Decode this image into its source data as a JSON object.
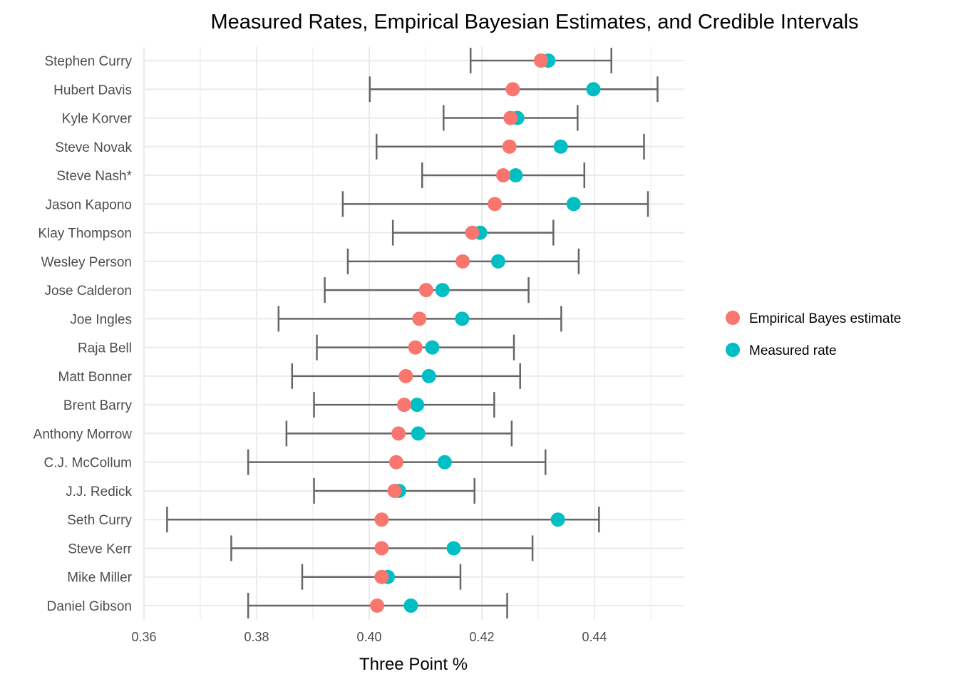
{
  "chart_data": {
    "type": "scatter",
    "title": "Measured Rates, Empirical Bayesian Estimates, and Credible Intervals",
    "xlabel": "Three Point %",
    "ylabel": "",
    "xlim": [
      0.36,
      0.456
    ],
    "x_ticks": [
      0.36,
      0.38,
      0.4,
      0.42,
      0.44
    ],
    "x_tick_labels": [
      "0.36",
      "0.38",
      "0.40",
      "0.42",
      "0.44"
    ],
    "grid": true,
    "legend_position": "right",
    "players": [
      {
        "name": "Stephen Curry",
        "eb": 0.4305,
        "measured": 0.4318,
        "low": 0.418,
        "high": 0.443
      },
      {
        "name": "Hubert Davis",
        "eb": 0.4255,
        "measured": 0.4398,
        "low": 0.4001,
        "high": 0.4512
      },
      {
        "name": "Kyle Korver",
        "eb": 0.4251,
        "measured": 0.4263,
        "low": 0.4132,
        "high": 0.437
      },
      {
        "name": "Steve Novak",
        "eb": 0.4249,
        "measured": 0.434,
        "low": 0.4013,
        "high": 0.4488
      },
      {
        "name": "Steve Nash*",
        "eb": 0.4238,
        "measured": 0.426,
        "low": 0.4094,
        "high": 0.4382
      },
      {
        "name": "Jason Kapono",
        "eb": 0.4223,
        "measured": 0.4363,
        "low": 0.3953,
        "high": 0.4495
      },
      {
        "name": "Klay Thompson",
        "eb": 0.4183,
        "measured": 0.4197,
        "low": 0.4042,
        "high": 0.4327
      },
      {
        "name": "Wesley Person",
        "eb": 0.4166,
        "measured": 0.4229,
        "low": 0.3962,
        "high": 0.4372
      },
      {
        "name": "Jose Calderon",
        "eb": 0.4101,
        "measured": 0.413,
        "low": 0.3921,
        "high": 0.4283
      },
      {
        "name": "Joe Ingles",
        "eb": 0.4089,
        "measured": 0.4165,
        "low": 0.3839,
        "high": 0.4341
      },
      {
        "name": "Raja Bell",
        "eb": 0.4082,
        "measured": 0.4112,
        "low": 0.3907,
        "high": 0.4257
      },
      {
        "name": "Matt Bonner",
        "eb": 0.4065,
        "measured": 0.4106,
        "low": 0.3863,
        "high": 0.4268
      },
      {
        "name": "Brent Barry",
        "eb": 0.4062,
        "measured": 0.4085,
        "low": 0.3902,
        "high": 0.4222
      },
      {
        "name": "Anthony Morrow",
        "eb": 0.4052,
        "measured": 0.4087,
        "low": 0.3853,
        "high": 0.4253
      },
      {
        "name": "C.J. McCollum",
        "eb": 0.4048,
        "measured": 0.4134,
        "low": 0.3785,
        "high": 0.4313
      },
      {
        "name": "J.J. Redick",
        "eb": 0.4045,
        "measured": 0.4053,
        "low": 0.3902,
        "high": 0.4187
      },
      {
        "name": "Seth Curry",
        "eb": 0.4022,
        "measured": 0.4335,
        "low": 0.3641,
        "high": 0.4408
      },
      {
        "name": "Steve Kerr",
        "eb": 0.4022,
        "measured": 0.415,
        "low": 0.3755,
        "high": 0.429
      },
      {
        "name": "Mike Miller",
        "eb": 0.4022,
        "measured": 0.4033,
        "low": 0.3881,
        "high": 0.4162
      },
      {
        "name": "Daniel Gibson",
        "eb": 0.4014,
        "measured": 0.4074,
        "low": 0.3785,
        "high": 0.4245
      }
    ],
    "legend": [
      {
        "label": "Empirical Bayes estimate",
        "color": "#f8766d"
      },
      {
        "label": "Measured rate",
        "color": "#00bfc4"
      }
    ],
    "errorbar_color": "#666666"
  }
}
